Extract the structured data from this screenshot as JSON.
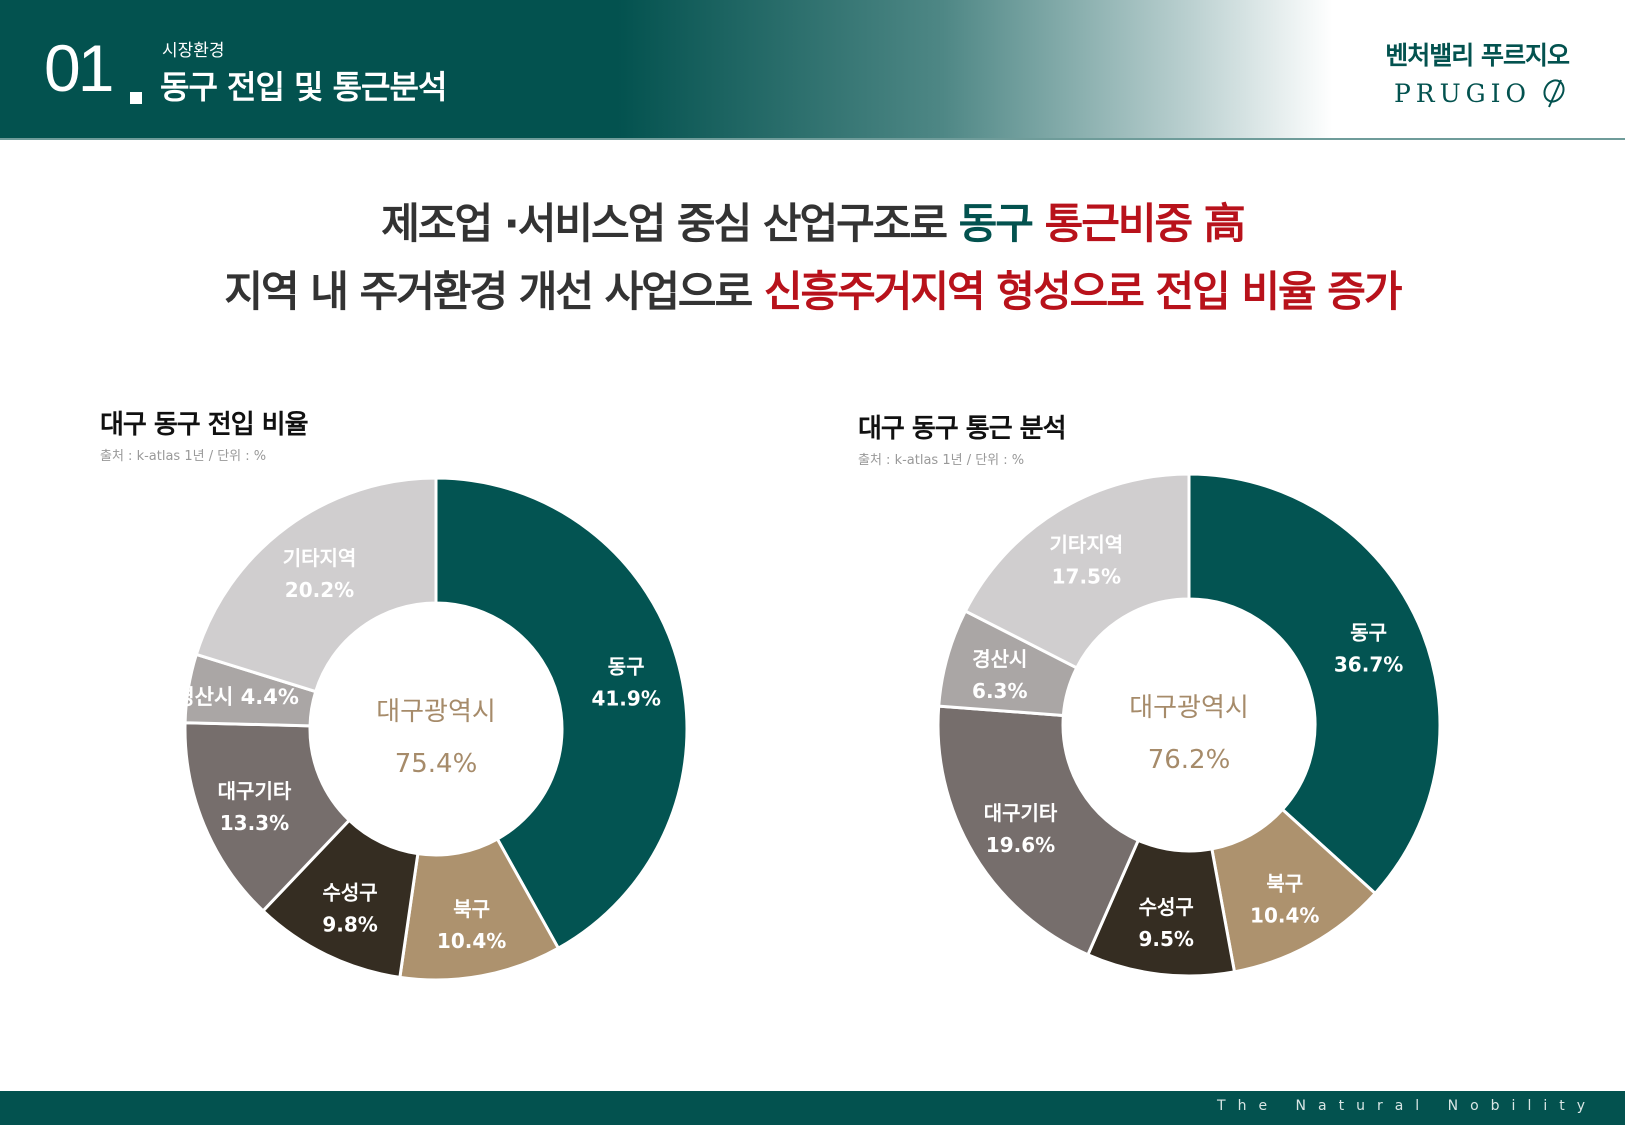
{
  "header": {
    "number": "01",
    "subtitle": "시장환경",
    "title": "동구 전입 및 통근분석",
    "brand_ko": "벤처밸리 푸르지오",
    "brand_en": "PRUGIO"
  },
  "headline": {
    "line1": [
      {
        "text": "제조업 ·서비스업 중심 산업구조로 ",
        "color": "#333333"
      },
      {
        "text": "동구 ",
        "color": "#03524f"
      },
      {
        "text": "통근비중 高",
        "color": "#b8121b"
      }
    ],
    "line2": [
      {
        "text": "지역 내 주거환경 개선 사업으로 ",
        "color": "#333333"
      },
      {
        "text": "신흥주거지역 형성으로 전입 비율 증가",
        "color": "#b8121b"
      }
    ]
  },
  "chart_data": [
    {
      "type": "pie",
      "title": "대구 동구 전입 비율",
      "source": "출처 : k-atlas 1년 / 단위 : %",
      "center_label": "대구광역시",
      "center_value": "75.4%",
      "categories": [
        "동구",
        "북구",
        "수성구",
        "대구기타",
        "경산시",
        "기타지역"
      ],
      "values": [
        41.9,
        10.4,
        9.8,
        13.3,
        4.4,
        20.2
      ],
      "colors": [
        "#035452",
        "#ad926e",
        "#352d22",
        "#766e6c",
        "#aaa6a5",
        "#d0cecf"
      ]
    },
    {
      "type": "pie",
      "title": "대구 동구 통근 분석",
      "source": "출처 : k-atlas 1년 / 단위 : %",
      "center_label": "대구광역시",
      "center_value": "76.2%",
      "categories": [
        "동구",
        "북구",
        "수성구",
        "대구기타",
        "경산시",
        "기타지역"
      ],
      "values": [
        36.7,
        10.4,
        9.5,
        19.6,
        6.3,
        17.5
      ],
      "colors": [
        "#035452",
        "#ad926e",
        "#352d22",
        "#766e6c",
        "#aaa6a5",
        "#d0cecf"
      ]
    }
  ],
  "footer": {
    "tagline": "The Natural Nobility"
  }
}
